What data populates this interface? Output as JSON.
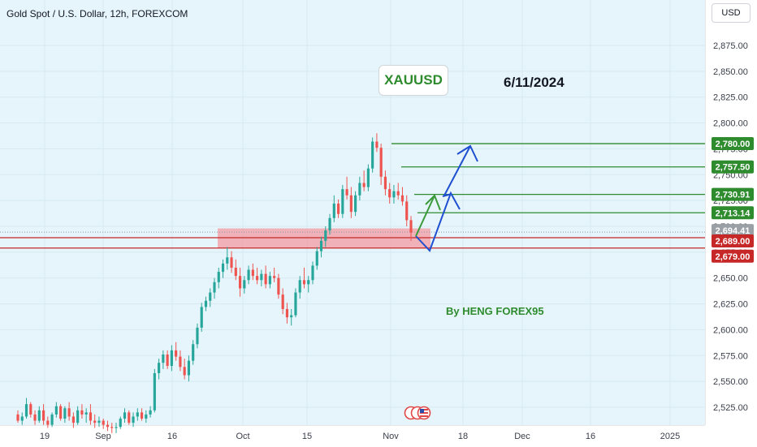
{
  "header": {
    "title": "Gold Spot / U.S. Dollar, 12h, FOREXCOM"
  },
  "currency_button": {
    "label": "USD"
  },
  "annotations": {
    "symbol_label": "XAUUSD",
    "date_label": "6/11/2024",
    "author_label": "By HENG FOREX95"
  },
  "colors": {
    "background": "#e6f5fb",
    "up_candle": "#26a69a",
    "down_candle": "#ef5350",
    "target_line": "#2e8b2e",
    "support_line": "#c62828",
    "support_zone": "#f2a0a8",
    "projection_blue": "#1f4fd1",
    "projection_green": "#3a9a3a"
  },
  "chart_data": {
    "type": "candlestick",
    "title": "Gold Spot / U.S. Dollar, 12h, FOREXCOM",
    "y_axis": {
      "range": [
        2500,
        2900
      ],
      "ticks": [
        "2,525.00",
        "2,550.00",
        "2,575.00",
        "2,600.00",
        "2,625.00",
        "2,650.00",
        "2,675.00",
        "2,700.00",
        "2,725.00",
        "2,750.00",
        "2,775.00",
        "2,800.00",
        "2,825.00",
        "2,850.00",
        "2,875.00"
      ]
    },
    "x_axis": {
      "ticks": [
        "19",
        "Sep",
        "16",
        "Oct",
        "15",
        "Nov",
        "18",
        "Dec",
        "16",
        "2025"
      ]
    },
    "price_levels": [
      {
        "value": 2780.0,
        "label": "2,780.00",
        "kind": "target"
      },
      {
        "value": 2757.5,
        "label": "2,757.50",
        "kind": "target"
      },
      {
        "value": 2730.91,
        "label": "2,730.91",
        "kind": "target"
      },
      {
        "value": 2713.14,
        "label": "2,713.14",
        "kind": "target"
      },
      {
        "value": 2694.41,
        "label": "2,694.41",
        "kind": "current"
      },
      {
        "value": 2689.0,
        "label": "2,689.00",
        "kind": "support"
      },
      {
        "value": 2679.0,
        "label": "2,679.00",
        "kind": "support"
      }
    ],
    "support_zone": {
      "low": 2679,
      "high": 2698
    },
    "candles": [
      [
        2518,
        2522,
        2510,
        2512
      ],
      [
        2512,
        2520,
        2508,
        2516
      ],
      [
        2516,
        2534,
        2514,
        2528
      ],
      [
        2528,
        2530,
        2515,
        2518
      ],
      [
        2518,
        2522,
        2508,
        2512
      ],
      [
        2512,
        2526,
        2510,
        2522
      ],
      [
        2522,
        2528,
        2508,
        2512
      ],
      [
        2512,
        2516,
        2505,
        2508
      ],
      [
        2508,
        2520,
        2506,
        2518
      ],
      [
        2518,
        2530,
        2515,
        2526
      ],
      [
        2526,
        2528,
        2512,
        2514
      ],
      [
        2514,
        2526,
        2510,
        2524
      ],
      [
        2524,
        2530,
        2512,
        2516
      ],
      [
        2516,
        2520,
        2505,
        2510
      ],
      [
        2510,
        2526,
        2508,
        2522
      ],
      [
        2522,
        2528,
        2514,
        2518
      ],
      [
        2518,
        2524,
        2510,
        2520
      ],
      [
        2520,
        2528,
        2508,
        2512
      ],
      [
        2512,
        2518,
        2505,
        2510
      ],
      [
        2510,
        2516,
        2506,
        2512
      ],
      [
        2512,
        2514,
        2504,
        2508
      ],
      [
        2508,
        2512,
        2502,
        2506
      ],
      [
        2506,
        2510,
        2500,
        2505
      ],
      [
        2505,
        2510,
        2500,
        2506
      ],
      [
        2506,
        2516,
        2504,
        2514
      ],
      [
        2514,
        2524,
        2510,
        2520
      ],
      [
        2520,
        2522,
        2508,
        2510
      ],
      [
        2510,
        2520,
        2506,
        2516
      ],
      [
        2516,
        2524,
        2512,
        2520
      ],
      [
        2520,
        2524,
        2512,
        2514
      ],
      [
        2514,
        2522,
        2510,
        2518
      ],
      [
        2518,
        2526,
        2515,
        2522
      ],
      [
        2522,
        2562,
        2520,
        2558
      ],
      [
        2558,
        2572,
        2552,
        2568
      ],
      [
        2568,
        2580,
        2562,
        2576
      ],
      [
        2576,
        2580,
        2562,
        2565
      ],
      [
        2565,
        2585,
        2560,
        2580
      ],
      [
        2580,
        2588,
        2570,
        2574
      ],
      [
        2574,
        2580,
        2560,
        2564
      ],
      [
        2564,
        2572,
        2552,
        2556
      ],
      [
        2556,
        2575,
        2550,
        2570
      ],
      [
        2570,
        2590,
        2566,
        2586
      ],
      [
        2586,
        2606,
        2582,
        2602
      ],
      [
        2602,
        2626,
        2598,
        2622
      ],
      [
        2622,
        2632,
        2618,
        2628
      ],
      [
        2628,
        2640,
        2622,
        2636
      ],
      [
        2636,
        2650,
        2630,
        2646
      ],
      [
        2646,
        2660,
        2640,
        2656
      ],
      [
        2656,
        2668,
        2650,
        2664
      ],
      [
        2664,
        2680,
        2658,
        2670
      ],
      [
        2670,
        2676,
        2655,
        2660
      ],
      [
        2660,
        2668,
        2648,
        2652
      ],
      [
        2652,
        2660,
        2632,
        2640
      ],
      [
        2640,
        2652,
        2635,
        2648
      ],
      [
        2648,
        2662,
        2644,
        2658
      ],
      [
        2658,
        2664,
        2648,
        2652
      ],
      [
        2652,
        2660,
        2644,
        2648
      ],
      [
        2648,
        2658,
        2642,
        2654
      ],
      [
        2654,
        2662,
        2640,
        2644
      ],
      [
        2644,
        2656,
        2640,
        2652
      ],
      [
        2652,
        2660,
        2646,
        2650
      ],
      [
        2650,
        2654,
        2630,
        2634
      ],
      [
        2634,
        2640,
        2615,
        2620
      ],
      [
        2620,
        2626,
        2606,
        2612
      ],
      [
        2612,
        2620,
        2604,
        2614
      ],
      [
        2614,
        2640,
        2612,
        2636
      ],
      [
        2636,
        2652,
        2630,
        2648
      ],
      [
        2648,
        2660,
        2640,
        2644
      ],
      [
        2644,
        2652,
        2636,
        2648
      ],
      [
        2648,
        2666,
        2644,
        2662
      ],
      [
        2662,
        2680,
        2658,
        2676
      ],
      [
        2676,
        2690,
        2670,
        2686
      ],
      [
        2686,
        2700,
        2680,
        2696
      ],
      [
        2696,
        2712,
        2692,
        2708
      ],
      [
        2708,
        2730,
        2704,
        2722
      ],
      [
        2722,
        2726,
        2708,
        2712
      ],
      [
        2712,
        2740,
        2708,
        2736
      ],
      [
        2736,
        2748,
        2726,
        2730
      ],
      [
        2730,
        2738,
        2708,
        2714
      ],
      [
        2714,
        2734,
        2710,
        2730
      ],
      [
        2730,
        2748,
        2725,
        2742
      ],
      [
        2742,
        2754,
        2734,
        2738
      ],
      [
        2738,
        2760,
        2734,
        2756
      ],
      [
        2756,
        2786,
        2752,
        2782
      ],
      [
        2782,
        2790,
        2772,
        2776
      ],
      [
        2776,
        2780,
        2740,
        2748
      ],
      [
        2748,
        2754,
        2730,
        2736
      ],
      [
        2736,
        2742,
        2722,
        2728
      ],
      [
        2728,
        2740,
        2722,
        2734
      ],
      [
        2734,
        2742,
        2726,
        2730
      ],
      [
        2730,
        2738,
        2720,
        2724
      ],
      [
        2724,
        2730,
        2700,
        2706
      ],
      [
        2706,
        2710,
        2686,
        2694
      ]
    ]
  }
}
